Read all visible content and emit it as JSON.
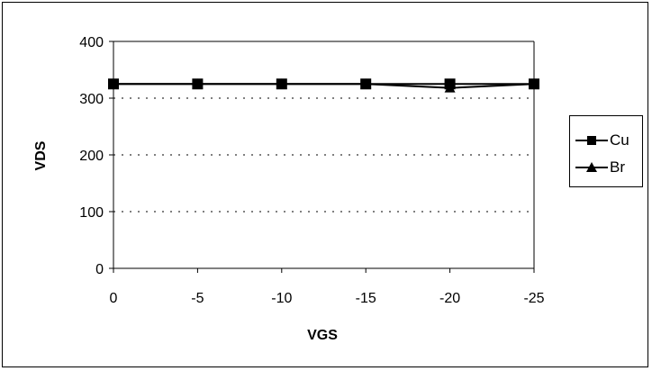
{
  "chart_data": {
    "type": "line",
    "title": "",
    "xlabel": "VGS",
    "ylabel": "VDS",
    "categories": [
      "0",
      "-5",
      "-10",
      "-15",
      "-20",
      "-25"
    ],
    "ylim": [
      0,
      400
    ],
    "yticks": [
      "0",
      "100",
      "200",
      "300",
      "400"
    ],
    "grid": "horizontal dotted",
    "legend_position": "right",
    "series": [
      {
        "name": "Cu",
        "marker": "square",
        "color": "#000000",
        "values": [
          325,
          325,
          325,
          325,
          325,
          325
        ]
      },
      {
        "name": "Br",
        "marker": "triangle",
        "color": "#000000",
        "values": [
          325,
          325,
          325,
          325,
          318,
          325
        ]
      }
    ]
  }
}
